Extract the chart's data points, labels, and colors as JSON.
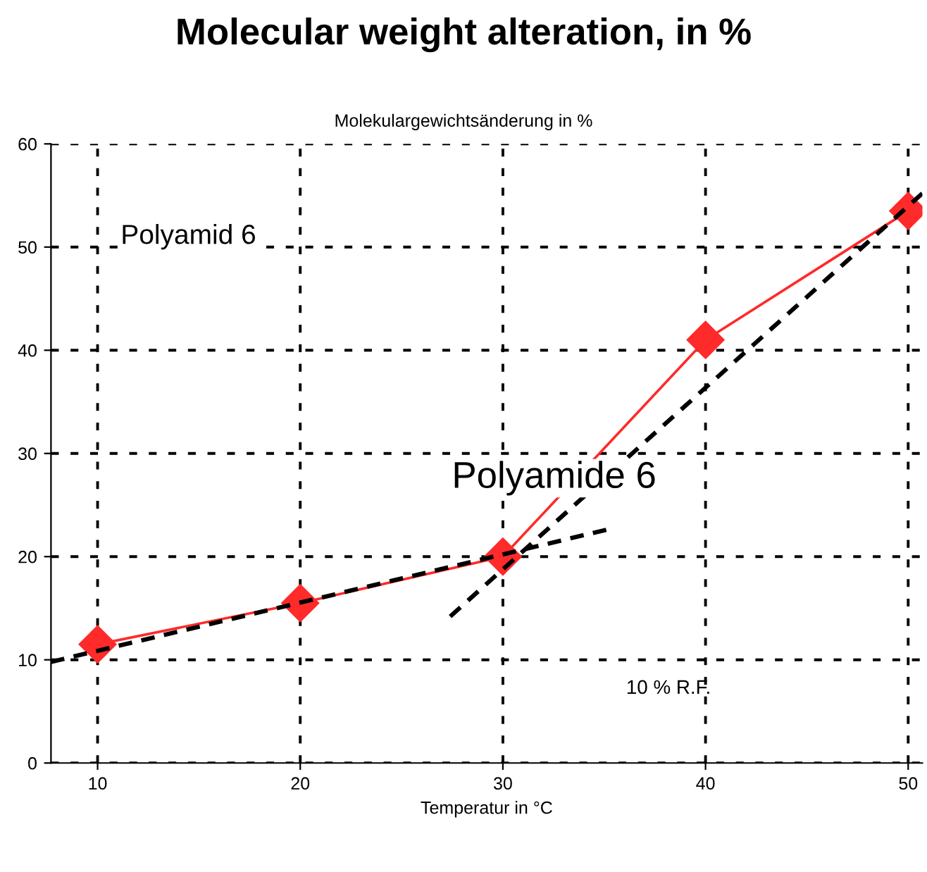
{
  "chart_data": {
    "type": "line",
    "title": "Molecular weight alteration, in %",
    "subtitle": "Molekulargewichtsänderung in %",
    "xlabel": "Temperatur in °C",
    "x": [
      10,
      20,
      30,
      40,
      50
    ],
    "series": [
      {
        "color": "#ff2a2a",
        "values": [
          11.5,
          15.5,
          20,
          41,
          53.5
        ],
        "marker": "diamond",
        "line_style": "solid"
      },
      {
        "type": "line",
        "color": "#000000",
        "x": [
          7.7,
          35.1
        ],
        "values": [
          9.8,
          22.6
        ],
        "marker": "none",
        "line_style": "dashed"
      },
      {
        "type": "line",
        "color": "#000000",
        "x": [
          27.4,
          50.7
        ],
        "values": [
          14.2,
          55.2
        ],
        "marker": "none",
        "line_style": "dashed"
      }
    ],
    "xlim": [
      7.7,
      50.7
    ],
    "ylim": [
      0,
      60
    ],
    "xticks": [
      10,
      20,
      30,
      40,
      50
    ],
    "yticks": [
      0,
      10,
      20,
      30,
      40,
      50,
      60
    ],
    "grid": true,
    "legend": false,
    "annotations": [
      "Polyamid 6",
      "Polyamide 6",
      "10 % R.F."
    ]
  }
}
